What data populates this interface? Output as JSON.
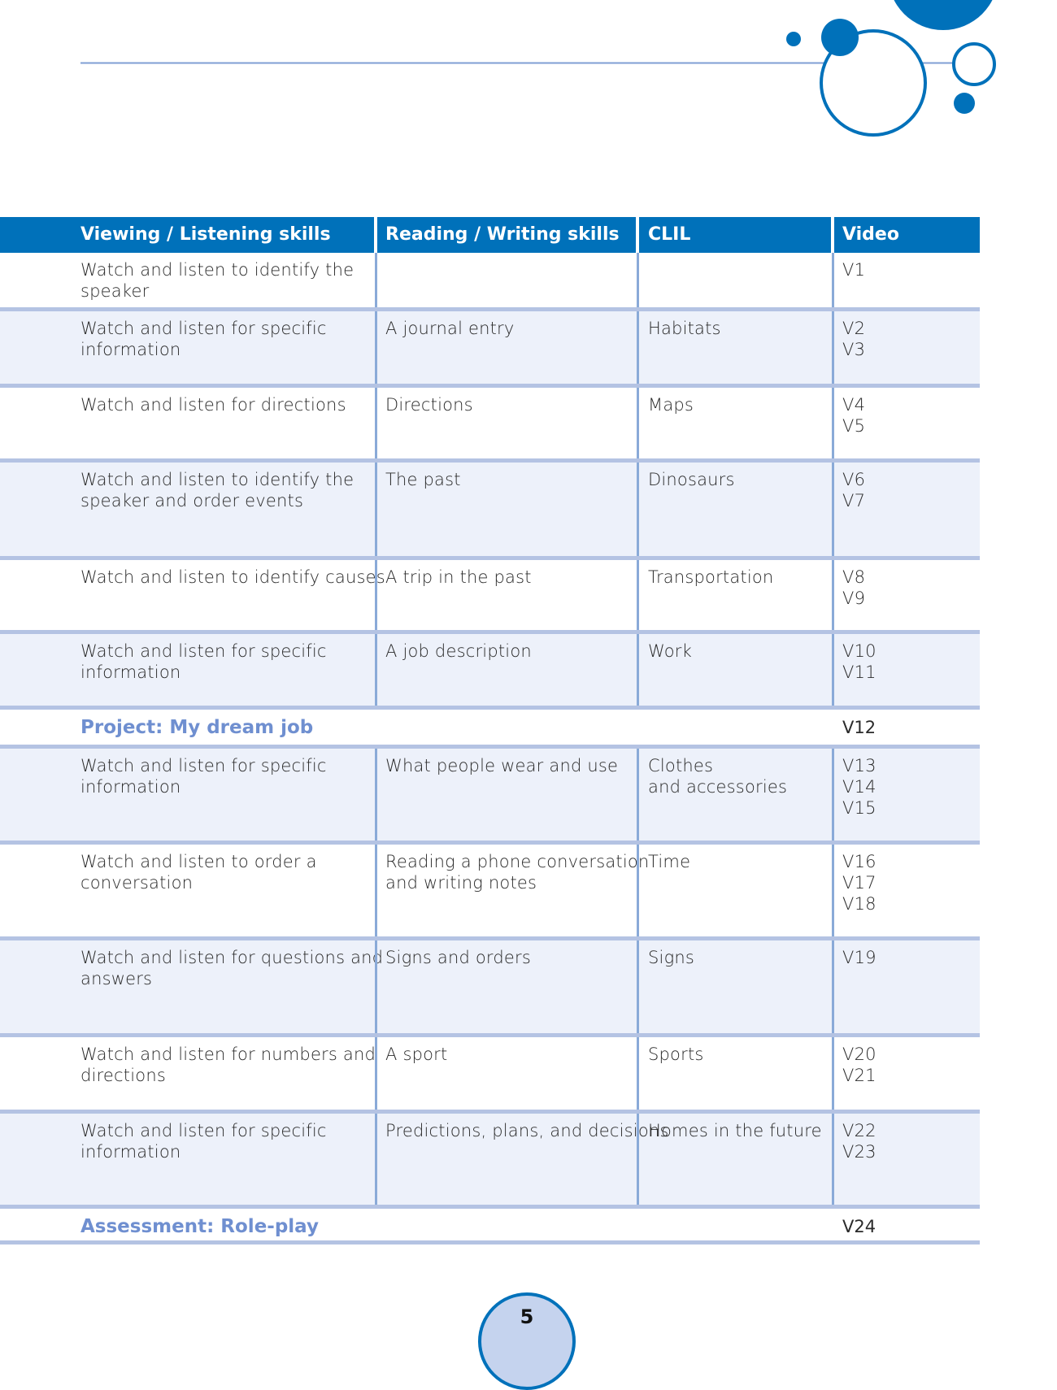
{
  "colors": {
    "brand": "#0071ba",
    "row_alt": "#edf1fa",
    "separator": "#b4c3e3",
    "divider": "#8aaad8",
    "project_text": "#6f8fd0",
    "page_circle": "#c5d3ee"
  },
  "header": [
    "Viewing / Listening skills",
    "Reading / Writing skills",
    "CLIL",
    "Video"
  ],
  "rows": [
    {
      "type": "unit",
      "viewing": "Watch and listen to identify the\nspeaker",
      "reading": "",
      "clil": "",
      "video": "V1"
    },
    {
      "type": "unit",
      "viewing": "Watch and listen for specific\ninformation",
      "reading": "A journal entry",
      "clil": "Habitats",
      "video": "V2\nV3"
    },
    {
      "type": "unit",
      "viewing": "Watch and listen for directions",
      "reading": "Directions",
      "clil": "Maps",
      "video": "V4\nV5"
    },
    {
      "type": "unit",
      "viewing": "Watch and listen to identify the\nspeaker and order events",
      "reading": "The past",
      "clil": "Dinosaurs",
      "video": "V6\nV7"
    },
    {
      "type": "unit",
      "viewing": "Watch and listen to identify causes",
      "reading": "A trip in the past",
      "clil": "Transportation",
      "video": "V8\nV9"
    },
    {
      "type": "unit",
      "viewing": "Watch and listen for specific\ninformation",
      "reading": "A job description",
      "clil": "Work",
      "video": "V10\nV11"
    },
    {
      "type": "project",
      "title": "Project: My dream job",
      "video": "V12"
    },
    {
      "type": "unit",
      "viewing": "Watch and listen for specific\ninformation",
      "reading": "What people wear and use",
      "clil": "Clothes\nand accessories",
      "video": "V13\nV14\nV15"
    },
    {
      "type": "unit",
      "viewing": "Watch and listen to order a\nconversation",
      "reading": "Reading a phone conversation\nand writing notes",
      "clil": "Time",
      "video": "V16\nV17\nV18"
    },
    {
      "type": "unit",
      "viewing": "Watch and listen for questions and\nanswers",
      "reading": "Signs and orders",
      "clil": "Signs",
      "video": "V19"
    },
    {
      "type": "unit",
      "viewing": "Watch and listen for numbers and\ndirections",
      "reading": "A sport",
      "clil": "Sports",
      "video": "V20\nV21"
    },
    {
      "type": "unit",
      "viewing": "Watch and listen for specific\ninformation",
      "reading": "Predictions, plans, and decisions",
      "clil": "Homes in the future",
      "video": "V22\nV23"
    },
    {
      "type": "project",
      "title": "Assessment: Role-play",
      "video": "V24"
    }
  ],
  "page_number": "5"
}
